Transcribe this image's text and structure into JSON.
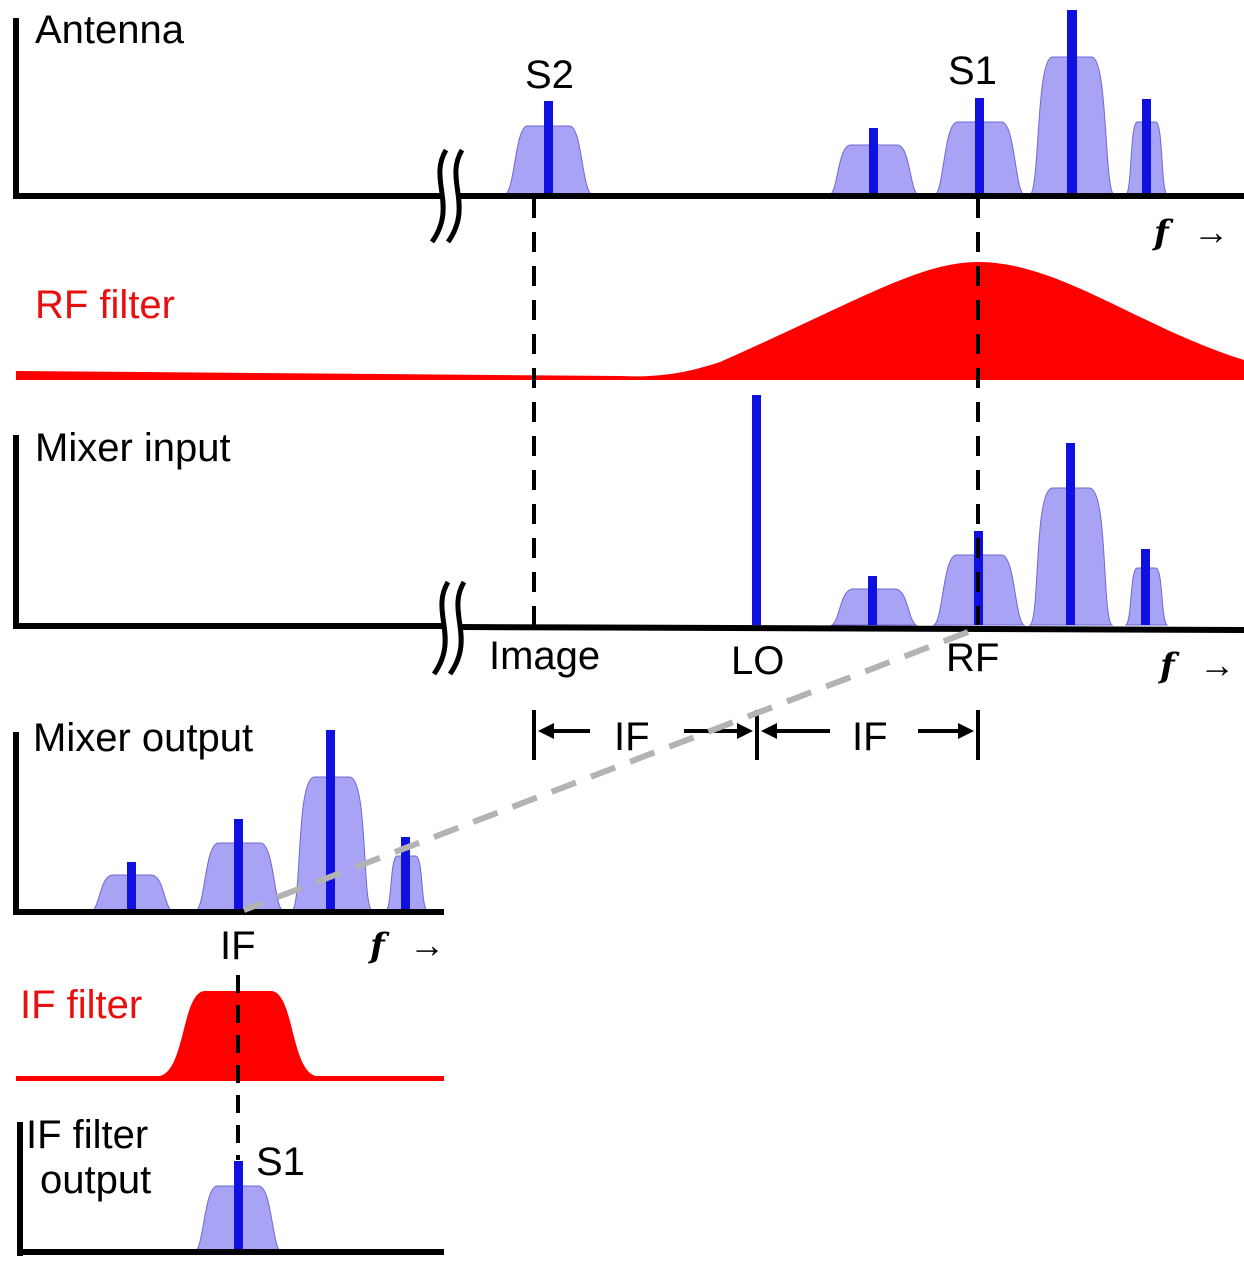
{
  "diagram": {
    "panels": {
      "antenna": "Antenna",
      "rf_filter": "RF filter",
      "mixer_input": "Mixer input",
      "mixer_output": "Mixer output",
      "if_filter": "IF filter",
      "if_filter_output_line1": "IF filter",
      "if_filter_output_line2": "output"
    },
    "signals": {
      "s1": "S1",
      "s2": "S2",
      "s1_output": "S1"
    },
    "markers": {
      "image": "Image",
      "lo": "LO",
      "rf": "RF",
      "if_mixer_out": "IF",
      "if_span_left": "IF",
      "if_span_right": "IF"
    },
    "freq_axis": {
      "symbol": "f",
      "arrow": "→"
    },
    "colors": {
      "axis": "#000000",
      "signal_band": "#a8a3f5",
      "signal_line": "#1010e0",
      "filter": "#ff0000",
      "filter_label": "#e8100f",
      "projection_dash": "#b3b3b3"
    }
  }
}
